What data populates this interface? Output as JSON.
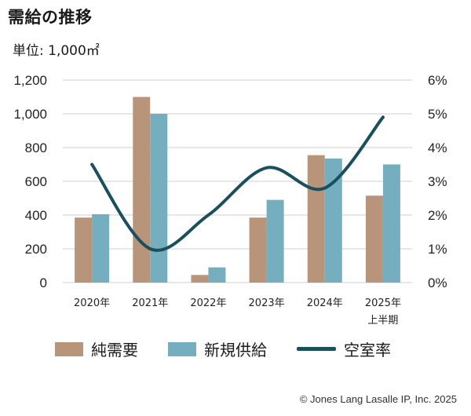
{
  "header": {
    "title": "需給の推移",
    "unit": "単位: 1,000㎡"
  },
  "chart_data": {
    "type": "bar",
    "categories": [
      "2020年",
      "2021年",
      "2022年",
      "2023年",
      "2024年",
      "2025年"
    ],
    "category_sublabels": [
      "",
      "",
      "",
      "",
      "",
      "上半期"
    ],
    "series": [
      {
        "name": "純需要",
        "type": "bar",
        "axis": "left",
        "color": "#b8957a",
        "values": [
          385,
          1100,
          45,
          385,
          755,
          515
        ]
      },
      {
        "name": "新規供給",
        "type": "bar",
        "axis": "left",
        "color": "#74aebf",
        "values": [
          405,
          1000,
          90,
          490,
          735,
          700
        ]
      },
      {
        "name": "空室率",
        "type": "line",
        "axis": "right",
        "color": "#1a4f5e",
        "values": [
          3.5,
          1.0,
          2.0,
          3.4,
          2.8,
          4.9
        ]
      }
    ],
    "yleft": {
      "ylim": [
        0,
        1200
      ],
      "ticks": [
        "0",
        "200",
        "400",
        "600",
        "800",
        "1,000",
        "1,200"
      ],
      "tick_values": [
        0,
        200,
        400,
        600,
        800,
        1000,
        1200
      ]
    },
    "yright": {
      "ylim": [
        0,
        6
      ],
      "ticks": [
        "0%",
        "1%",
        "2%",
        "3%",
        "4%",
        "5%",
        "6%"
      ],
      "tick_values": [
        0,
        1,
        2,
        3,
        4,
        5,
        6
      ]
    },
    "grid": true,
    "legend": "bottom"
  },
  "legend": {
    "items": [
      {
        "label": "純需要",
        "color": "#b8957a",
        "kind": "bar"
      },
      {
        "label": "新規供給",
        "color": "#74aebf",
        "kind": "bar"
      },
      {
        "label": "空室率",
        "color": "#1a4f5e",
        "kind": "line"
      }
    ]
  },
  "footer": {
    "copyright": "© Jones Lang Lasalle IP, Inc. 2025"
  }
}
